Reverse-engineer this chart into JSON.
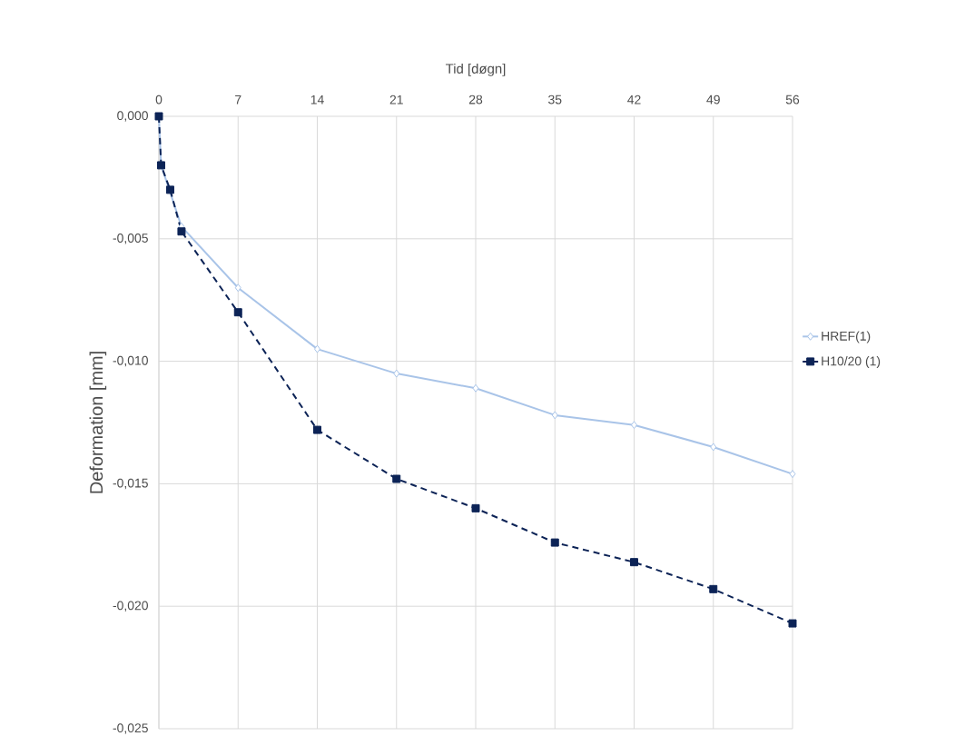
{
  "chart_data": {
    "type": "line",
    "xlabel": "Tid [døgn]",
    "ylabel": "Deformation [mm]",
    "x": [
      0,
      0.2,
      1,
      2,
      7,
      14,
      21,
      28,
      35,
      42,
      49,
      56
    ],
    "series": [
      {
        "name": "HREF(1)",
        "color": "#a9c4e8",
        "marker": "diamond",
        "line_style": "solid",
        "values": [
          0,
          -0.002,
          null,
          -0.0045,
          -0.007,
          -0.0095,
          -0.0105,
          -0.0111,
          -0.0122,
          -0.0126,
          -0.0135,
          -0.0146
        ]
      },
      {
        "name": "H10/20 (1)",
        "color": "#0c2356",
        "marker": "square",
        "line_style": "dashed",
        "values": [
          0,
          -0.002,
          -0.003,
          -0.0047,
          -0.008,
          -0.0128,
          -0.0148,
          -0.016,
          -0.0174,
          -0.0182,
          -0.0193,
          -0.0207
        ]
      }
    ],
    "xlim": [
      0,
      56
    ],
    "xticks": [
      0,
      7,
      14,
      21,
      28,
      35,
      42,
      49,
      56
    ],
    "ylim": [
      -0.025,
      0
    ],
    "yticks": [
      {
        "value": 0,
        "label": "0,000"
      },
      {
        "value": -0.005,
        "label": "-0,005"
      },
      {
        "value": -0.01,
        "label": "-0,010"
      },
      {
        "value": -0.015,
        "label": "-0,015"
      },
      {
        "value": -0.02,
        "label": "-0,020"
      },
      {
        "value": -0.025,
        "label": "-0,025"
      }
    ],
    "grid": true,
    "legend": "right"
  }
}
